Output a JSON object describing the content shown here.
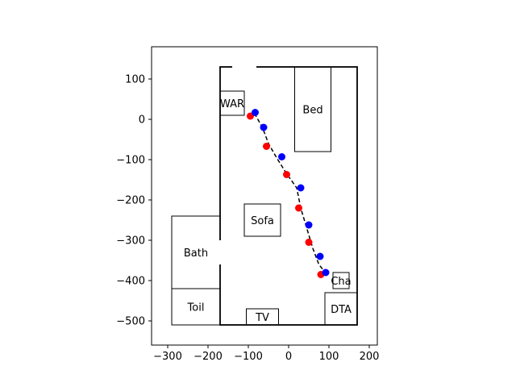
{
  "chart_data": {
    "type": "scatter",
    "title": "",
    "xlabel": "",
    "ylabel": "",
    "xlim": [
      -340,
      220
    ],
    "ylim": [
      -560,
      180
    ],
    "xticks": [
      -300,
      -200,
      -100,
      0,
      100,
      200
    ],
    "yticks": [
      100,
      0,
      -100,
      -200,
      -300,
      -400,
      -500
    ],
    "colors": {
      "red": "#ff0000",
      "blue": "#0000ff",
      "path": "#000000",
      "frame": "#000000"
    },
    "apartment": {
      "x1": -170,
      "y1": -510,
      "x2": 170,
      "y2": 130,
      "door_gap_x": [
        -140,
        -80
      ],
      "wall_gap_y": [
        -360,
        -300
      ]
    },
    "rooms": [
      {
        "label": "WAR",
        "x1": -170,
        "y1": 10,
        "x2": -110,
        "y2": 70
      },
      {
        "label": "Bed",
        "x1": 15,
        "y1": -80,
        "x2": 105,
        "y2": 130
      },
      {
        "label": "Sofa",
        "x1": -110,
        "y1": -290,
        "x2": -20,
        "y2": -210
      },
      {
        "label": "Bath",
        "x1": -290,
        "y1": -420,
        "x2": -170,
        "y2": -240
      },
      {
        "label": "Toil",
        "x1": -290,
        "y1": -510,
        "x2": -170,
        "y2": -420
      },
      {
        "label": "TV",
        "x1": -105,
        "y1": -510,
        "x2": -25,
        "y2": -470
      },
      {
        "label": "Cha",
        "x1": 110,
        "y1": -420,
        "x2": 150,
        "y2": -380
      },
      {
        "label": "DTA",
        "x1": 90,
        "y1": -510,
        "x2": 170,
        "y2": -430
      }
    ],
    "path": [
      [
        -85,
        15
      ],
      [
        -65,
        -20
      ],
      [
        -50,
        -60
      ],
      [
        -30,
        -95
      ],
      [
        -5,
        -135
      ],
      [
        20,
        -170
      ],
      [
        30,
        -220
      ],
      [
        45,
        -270
      ],
      [
        60,
        -320
      ],
      [
        75,
        -360
      ],
      [
        95,
        -385
      ]
    ],
    "series": [
      {
        "color": "red",
        "points": [
          [
            -95,
            8
          ],
          [
            -55,
            -67
          ],
          [
            -5,
            -137
          ],
          [
            25,
            -220
          ],
          [
            50,
            -305
          ],
          [
            80,
            -385
          ]
        ]
      },
      {
        "color": "blue",
        "points": [
          [
            -83,
            17
          ],
          [
            -62,
            -20
          ],
          [
            -17,
            -93
          ],
          [
            30,
            -170
          ],
          [
            50,
            -262
          ],
          [
            78,
            -340
          ],
          [
            92,
            -380
          ]
        ]
      }
    ]
  }
}
